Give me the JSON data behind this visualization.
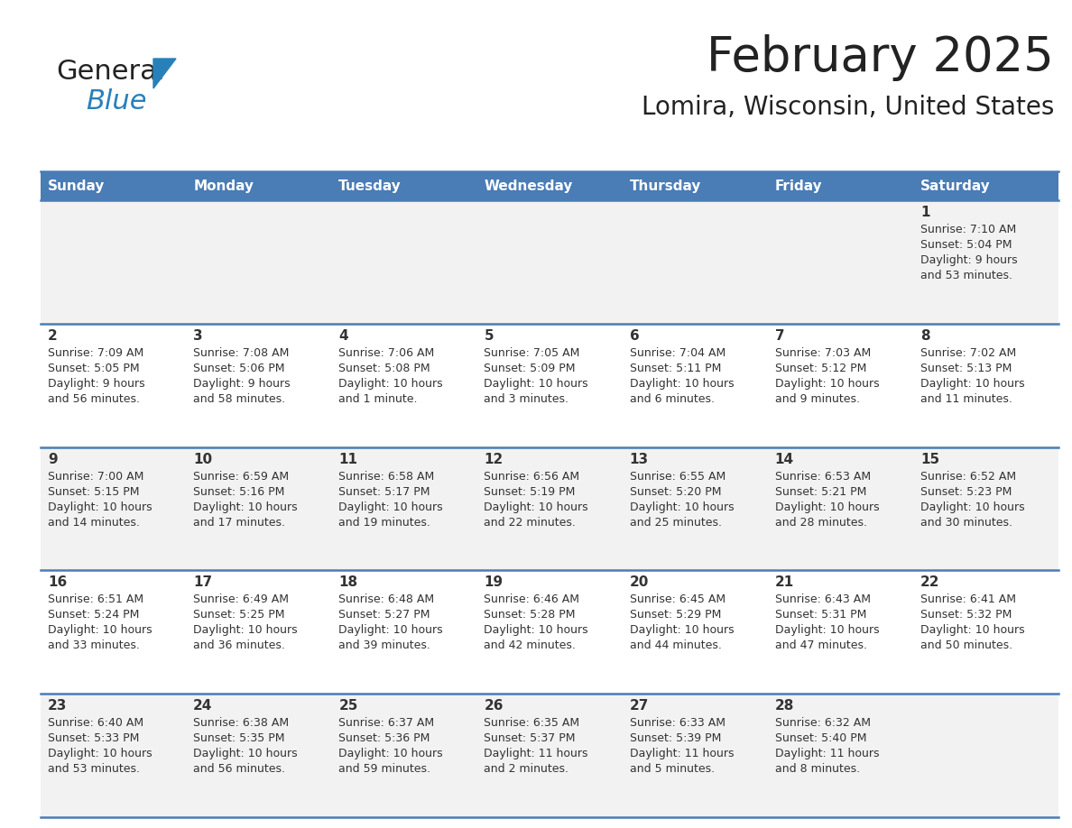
{
  "title": "February 2025",
  "subtitle": "Lomira, Wisconsin, United States",
  "header_color": "#4a7cb5",
  "header_text_color": "#ffffff",
  "row_bg_odd": "#f2f2f2",
  "row_bg_even": "#ffffff",
  "border_color": "#4a7cb5",
  "text_color": "#333333",
  "day_headers": [
    "Sunday",
    "Monday",
    "Tuesday",
    "Wednesday",
    "Thursday",
    "Friday",
    "Saturday"
  ],
  "logo_general_color": "#222222",
  "logo_blue_color": "#2980b9",
  "logo_triangle_color": "#2980b9",
  "title_color": "#222222",
  "title_fontsize": 38,
  "subtitle_fontsize": 20,
  "header_fontsize": 11,
  "day_num_fontsize": 11,
  "cell_text_fontsize": 9,
  "days": [
    {
      "day": 1,
      "col": 6,
      "row": 0,
      "sunrise": "7:10 AM",
      "sunset": "5:04 PM",
      "daylight": "9 hours and 53 minutes."
    },
    {
      "day": 2,
      "col": 0,
      "row": 1,
      "sunrise": "7:09 AM",
      "sunset": "5:05 PM",
      "daylight": "9 hours and 56 minutes."
    },
    {
      "day": 3,
      "col": 1,
      "row": 1,
      "sunrise": "7:08 AM",
      "sunset": "5:06 PM",
      "daylight": "9 hours and 58 minutes."
    },
    {
      "day": 4,
      "col": 2,
      "row": 1,
      "sunrise": "7:06 AM",
      "sunset": "5:08 PM",
      "daylight": "10 hours and 1 minute."
    },
    {
      "day": 5,
      "col": 3,
      "row": 1,
      "sunrise": "7:05 AM",
      "sunset": "5:09 PM",
      "daylight": "10 hours and 3 minutes."
    },
    {
      "day": 6,
      "col": 4,
      "row": 1,
      "sunrise": "7:04 AM",
      "sunset": "5:11 PM",
      "daylight": "10 hours and 6 minutes."
    },
    {
      "day": 7,
      "col": 5,
      "row": 1,
      "sunrise": "7:03 AM",
      "sunset": "5:12 PM",
      "daylight": "10 hours and 9 minutes."
    },
    {
      "day": 8,
      "col": 6,
      "row": 1,
      "sunrise": "7:02 AM",
      "sunset": "5:13 PM",
      "daylight": "10 hours and 11 minutes."
    },
    {
      "day": 9,
      "col": 0,
      "row": 2,
      "sunrise": "7:00 AM",
      "sunset": "5:15 PM",
      "daylight": "10 hours and 14 minutes."
    },
    {
      "day": 10,
      "col": 1,
      "row": 2,
      "sunrise": "6:59 AM",
      "sunset": "5:16 PM",
      "daylight": "10 hours and 17 minutes."
    },
    {
      "day": 11,
      "col": 2,
      "row": 2,
      "sunrise": "6:58 AM",
      "sunset": "5:17 PM",
      "daylight": "10 hours and 19 minutes."
    },
    {
      "day": 12,
      "col": 3,
      "row": 2,
      "sunrise": "6:56 AM",
      "sunset": "5:19 PM",
      "daylight": "10 hours and 22 minutes."
    },
    {
      "day": 13,
      "col": 4,
      "row": 2,
      "sunrise": "6:55 AM",
      "sunset": "5:20 PM",
      "daylight": "10 hours and 25 minutes."
    },
    {
      "day": 14,
      "col": 5,
      "row": 2,
      "sunrise": "6:53 AM",
      "sunset": "5:21 PM",
      "daylight": "10 hours and 28 minutes."
    },
    {
      "day": 15,
      "col": 6,
      "row": 2,
      "sunrise": "6:52 AM",
      "sunset": "5:23 PM",
      "daylight": "10 hours and 30 minutes."
    },
    {
      "day": 16,
      "col": 0,
      "row": 3,
      "sunrise": "6:51 AM",
      "sunset": "5:24 PM",
      "daylight": "10 hours and 33 minutes."
    },
    {
      "day": 17,
      "col": 1,
      "row": 3,
      "sunrise": "6:49 AM",
      "sunset": "5:25 PM",
      "daylight": "10 hours and 36 minutes."
    },
    {
      "day": 18,
      "col": 2,
      "row": 3,
      "sunrise": "6:48 AM",
      "sunset": "5:27 PM",
      "daylight": "10 hours and 39 minutes."
    },
    {
      "day": 19,
      "col": 3,
      "row": 3,
      "sunrise": "6:46 AM",
      "sunset": "5:28 PM",
      "daylight": "10 hours and 42 minutes."
    },
    {
      "day": 20,
      "col": 4,
      "row": 3,
      "sunrise": "6:45 AM",
      "sunset": "5:29 PM",
      "daylight": "10 hours and 44 minutes."
    },
    {
      "day": 21,
      "col": 5,
      "row": 3,
      "sunrise": "6:43 AM",
      "sunset": "5:31 PM",
      "daylight": "10 hours and 47 minutes."
    },
    {
      "day": 22,
      "col": 6,
      "row": 3,
      "sunrise": "6:41 AM",
      "sunset": "5:32 PM",
      "daylight": "10 hours and 50 minutes."
    },
    {
      "day": 23,
      "col": 0,
      "row": 4,
      "sunrise": "6:40 AM",
      "sunset": "5:33 PM",
      "daylight": "10 hours and 53 minutes."
    },
    {
      "day": 24,
      "col": 1,
      "row": 4,
      "sunrise": "6:38 AM",
      "sunset": "5:35 PM",
      "daylight": "10 hours and 56 minutes."
    },
    {
      "day": 25,
      "col": 2,
      "row": 4,
      "sunrise": "6:37 AM",
      "sunset": "5:36 PM",
      "daylight": "10 hours and 59 minutes."
    },
    {
      "day": 26,
      "col": 3,
      "row": 4,
      "sunrise": "6:35 AM",
      "sunset": "5:37 PM",
      "daylight": "11 hours and 2 minutes."
    },
    {
      "day": 27,
      "col": 4,
      "row": 4,
      "sunrise": "6:33 AM",
      "sunset": "5:39 PM",
      "daylight": "11 hours and 5 minutes."
    },
    {
      "day": 28,
      "col": 5,
      "row": 4,
      "sunrise": "6:32 AM",
      "sunset": "5:40 PM",
      "daylight": "11 hours and 8 minutes."
    }
  ]
}
